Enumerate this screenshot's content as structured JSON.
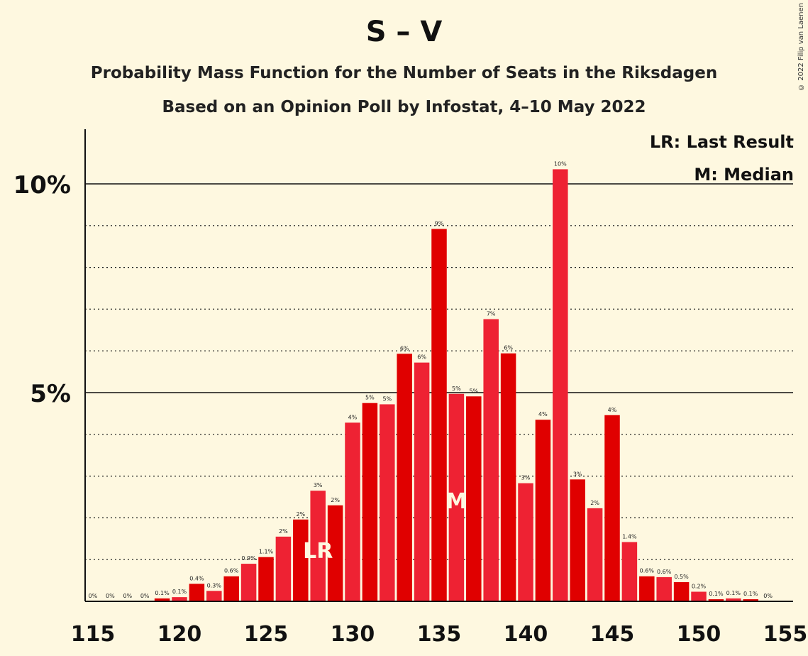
{
  "header": {
    "title": "S – V",
    "subtitle_1": "Probability Mass Function for the Number of Seats in the Riksdagen",
    "subtitle_2": "Based on an Opinion Poll by Infostat, 4–10 May 2022",
    "copyright": "© 2022 Filip van Laenen"
  },
  "legend": {
    "last_result": "LR: Last Result",
    "median": "M: Median"
  },
  "colors": {
    "background": "#fef8e0",
    "bar_dark": "#e00000",
    "bar_light": "#ee2233",
    "marker_text": "#fef8e0"
  },
  "chart_data": {
    "type": "bar",
    "title": "S – V",
    "xlabel": "",
    "ylabel": "",
    "x": [
      115,
      116,
      117,
      118,
      119,
      120,
      121,
      122,
      123,
      124,
      125,
      126,
      127,
      128,
      129,
      130,
      131,
      132,
      133,
      134,
      135,
      136,
      137,
      138,
      139,
      140,
      141,
      142,
      143,
      144,
      145,
      146,
      147,
      148,
      149,
      150,
      151,
      152,
      153,
      154
    ],
    "values": [
      0,
      0,
      0,
      0,
      0.07,
      0.1,
      0.42,
      0.25,
      0.6,
      0.9,
      1.06,
      1.55,
      1.96,
      2.65,
      2.3,
      4.28,
      4.75,
      4.72,
      5.93,
      5.72,
      8.92,
      4.97,
      4.91,
      6.76,
      5.94,
      2.83,
      4.35,
      10.35,
      2.92,
      2.23,
      4.46,
      1.42,
      0.6,
      0.58,
      0.46,
      0.23,
      0.05,
      0.07,
      0.05,
      0
    ],
    "labels": [
      "0%",
      "0%",
      "0%",
      "0%",
      "0.1%",
      "0.1%",
      "0.4%",
      "0.3%",
      "0.6%",
      "0.9%",
      "1.1%",
      "2%",
      "2%",
      "3%",
      "2%",
      "4%",
      "5%",
      "5%",
      "6%",
      "6%",
      "9%",
      "5%",
      "5%",
      "7%",
      "6%",
      "3%",
      "4%",
      "10%",
      "3%",
      "2%",
      "4%",
      "1.4%",
      "0.6%",
      "0.6%",
      "0.5%",
      "0.2%",
      "0.1%",
      "0.1%",
      "0.1%",
      "0%"
    ],
    "x_ticks": [
      115,
      120,
      125,
      130,
      135,
      140,
      145,
      150,
      155
    ],
    "x_tick_labels": [
      "115",
      "120",
      "125",
      "130",
      "135",
      "140",
      "145",
      "150",
      "155"
    ],
    "y_ticks": [
      5,
      10
    ],
    "y_tick_labels": [
      "5%",
      "10%"
    ],
    "ylim": [
      0,
      11.3
    ],
    "xlim": [
      115,
      155
    ],
    "last_result": {
      "seat": 128,
      "label": "LR"
    },
    "median": {
      "seat": 136,
      "label": "M"
    },
    "grid": "dotted every 1%, solid at 5% and 10%"
  }
}
